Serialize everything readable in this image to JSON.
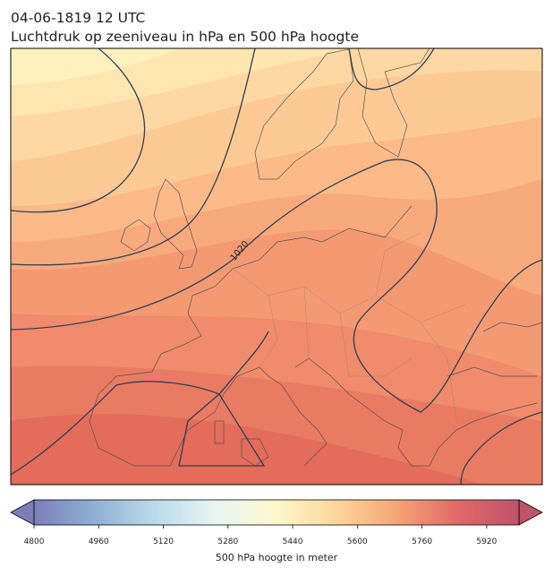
{
  "header": {
    "date": "04-06-1819 12 UTC",
    "title": "Luchtdruk op zeeniveau in hPa en 500 hPa hoogte"
  },
  "map": {
    "isobar_labels": [
      "1020"
    ]
  },
  "colorbar": {
    "label": "500 hPa hoogte in meter",
    "lim": [
      4800,
      6000
    ],
    "ticks": [
      4800,
      4960,
      5120,
      5280,
      5440,
      5600,
      5760,
      5920
    ],
    "colors": [
      "#6c71b2",
      "#83a7cf",
      "#b2d8e8",
      "#e6f4f3",
      "#fdf7c6",
      "#fdd190",
      "#f59966",
      "#dc5856",
      "#b8405a"
    ]
  }
}
